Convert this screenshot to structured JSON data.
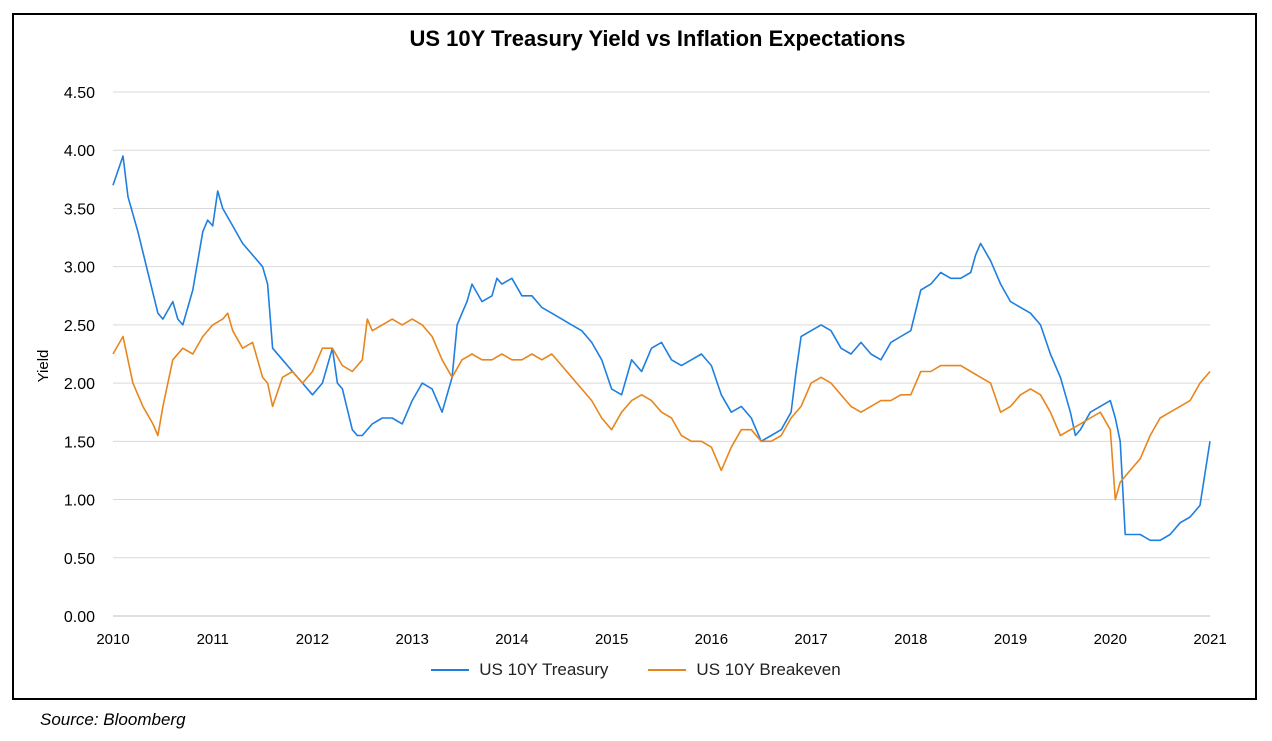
{
  "chart_data": {
    "type": "line",
    "title": "US 10Y Treasury Yield vs Inflation Expectations",
    "ylabel": "Yield",
    "xlabel": "",
    "ylim": [
      0,
      4.5
    ],
    "xlim": [
      2010,
      2021
    ],
    "y_ticks": [
      "0.00",
      "0.50",
      "1.00",
      "1.50",
      "2.00",
      "2.50",
      "3.00",
      "3.50",
      "4.00",
      "4.50"
    ],
    "x_ticks": [
      "2010",
      "2011",
      "2012",
      "2013",
      "2014",
      "2015",
      "2016",
      "2017",
      "2018",
      "2019",
      "2020",
      "2021"
    ],
    "grid": true,
    "legend_position": "bottom",
    "series": [
      {
        "name": "US 10Y Treasury",
        "color": "#1f7fe0",
        "x": [
          2010.0,
          2010.1,
          2010.15,
          2010.25,
          2010.35,
          2010.45,
          2010.5,
          2010.6,
          2010.65,
          2010.7,
          2010.8,
          2010.9,
          2010.95,
          2011.0,
          2011.05,
          2011.1,
          2011.2,
          2011.3,
          2011.4,
          2011.5,
          2011.55,
          2011.6,
          2011.7,
          2011.8,
          2011.9,
          2012.0,
          2012.1,
          2012.2,
          2012.25,
          2012.3,
          2012.4,
          2012.45,
          2012.5,
          2012.6,
          2012.7,
          2012.8,
          2012.9,
          2013.0,
          2013.1,
          2013.2,
          2013.3,
          2013.4,
          2013.45,
          2013.5,
          2013.55,
          2013.6,
          2013.7,
          2013.8,
          2013.85,
          2013.9,
          2014.0,
          2014.1,
          2014.2,
          2014.3,
          2014.4,
          2014.5,
          2014.6,
          2014.7,
          2014.8,
          2014.9,
          2015.0,
          2015.1,
          2015.2,
          2015.3,
          2015.4,
          2015.5,
          2015.6,
          2015.7,
          2015.8,
          2015.9,
          2016.0,
          2016.1,
          2016.2,
          2016.3,
          2016.35,
          2016.4,
          2016.5,
          2016.6,
          2016.7,
          2016.8,
          2016.85,
          2016.9,
          2017.0,
          2017.1,
          2017.2,
          2017.3,
          2017.4,
          2017.5,
          2017.6,
          2017.7,
          2017.8,
          2017.9,
          2018.0,
          2018.1,
          2018.2,
          2018.3,
          2018.4,
          2018.5,
          2018.6,
          2018.65,
          2018.7,
          2018.8,
          2018.9,
          2019.0,
          2019.1,
          2019.2,
          2019.3,
          2019.4,
          2019.5,
          2019.6,
          2019.65,
          2019.7,
          2019.8,
          2019.9,
          2020.0,
          2020.05,
          2020.1,
          2020.15,
          2020.2,
          2020.3,
          2020.4,
          2020.5,
          2020.6,
          2020.7,
          2020.8,
          2020.9,
          2021.0
        ],
        "values": [
          3.7,
          3.95,
          3.6,
          3.3,
          2.95,
          2.6,
          2.55,
          2.7,
          2.55,
          2.5,
          2.8,
          3.3,
          3.4,
          3.35,
          3.65,
          3.5,
          3.35,
          3.2,
          3.1,
          3.0,
          2.85,
          2.3,
          2.2,
          2.1,
          2.0,
          1.9,
          2.0,
          2.3,
          2.0,
          1.95,
          1.6,
          1.55,
          1.55,
          1.65,
          1.7,
          1.7,
          1.65,
          1.85,
          2.0,
          1.95,
          1.75,
          2.05,
          2.5,
          2.6,
          2.7,
          2.85,
          2.7,
          2.75,
          2.9,
          2.85,
          2.9,
          2.75,
          2.75,
          2.65,
          2.6,
          2.55,
          2.5,
          2.45,
          2.35,
          2.2,
          1.95,
          1.9,
          2.2,
          2.1,
          2.3,
          2.35,
          2.2,
          2.15,
          2.2,
          2.25,
          2.15,
          1.9,
          1.75,
          1.8,
          1.75,
          1.7,
          1.5,
          1.55,
          1.6,
          1.75,
          2.1,
          2.4,
          2.45,
          2.5,
          2.45,
          2.3,
          2.25,
          2.35,
          2.25,
          2.2,
          2.35,
          2.4,
          2.45,
          2.8,
          2.85,
          2.95,
          2.9,
          2.9,
          2.95,
          3.1,
          3.2,
          3.05,
          2.85,
          2.7,
          2.65,
          2.6,
          2.5,
          2.25,
          2.05,
          1.75,
          1.55,
          1.6,
          1.75,
          1.8,
          1.85,
          1.7,
          1.5,
          0.7,
          0.7,
          0.7,
          0.65,
          0.65,
          0.7,
          0.8,
          0.85,
          0.95,
          1.5
        ]
      },
      {
        "name": "US 10Y Breakeven",
        "color": "#e8861e",
        "x": [
          2010.0,
          2010.1,
          2010.2,
          2010.3,
          2010.4,
          2010.45,
          2010.5,
          2010.6,
          2010.7,
          2010.8,
          2010.9,
          2011.0,
          2011.1,
          2011.15,
          2011.2,
          2011.3,
          2011.4,
          2011.5,
          2011.55,
          2011.6,
          2011.7,
          2011.8,
          2011.9,
          2012.0,
          2012.1,
          2012.2,
          2012.3,
          2012.4,
          2012.5,
          2012.55,
          2012.6,
          2012.7,
          2012.8,
          2012.9,
          2013.0,
          2013.1,
          2013.2,
          2013.3,
          2013.4,
          2013.5,
          2013.6,
          2013.7,
          2013.8,
          2013.9,
          2014.0,
          2014.1,
          2014.2,
          2014.3,
          2014.4,
          2014.5,
          2014.6,
          2014.7,
          2014.8,
          2014.9,
          2015.0,
          2015.1,
          2015.2,
          2015.3,
          2015.4,
          2015.5,
          2015.6,
          2015.7,
          2015.8,
          2015.9,
          2016.0,
          2016.1,
          2016.2,
          2016.3,
          2016.4,
          2016.5,
          2016.6,
          2016.7,
          2016.8,
          2016.9,
          2017.0,
          2017.1,
          2017.2,
          2017.3,
          2017.4,
          2017.5,
          2017.6,
          2017.7,
          2017.8,
          2017.9,
          2018.0,
          2018.1,
          2018.2,
          2018.3,
          2018.4,
          2018.5,
          2018.6,
          2018.7,
          2018.8,
          2018.9,
          2019.0,
          2019.1,
          2019.2,
          2019.3,
          2019.4,
          2019.5,
          2019.6,
          2019.7,
          2019.8,
          2019.9,
          2020.0,
          2020.05,
          2020.1,
          2020.15,
          2020.2,
          2020.3,
          2020.4,
          2020.5,
          2020.6,
          2020.7,
          2020.8,
          2020.9,
          2021.0
        ],
        "values": [
          2.25,
          2.4,
          2.0,
          1.8,
          1.65,
          1.55,
          1.8,
          2.2,
          2.3,
          2.25,
          2.4,
          2.5,
          2.55,
          2.6,
          2.45,
          2.3,
          2.35,
          2.05,
          2.0,
          1.8,
          2.05,
          2.1,
          2.0,
          2.1,
          2.3,
          2.3,
          2.15,
          2.1,
          2.2,
          2.55,
          2.45,
          2.5,
          2.55,
          2.5,
          2.55,
          2.5,
          2.4,
          2.2,
          2.05,
          2.2,
          2.25,
          2.2,
          2.2,
          2.25,
          2.2,
          2.2,
          2.25,
          2.2,
          2.25,
          2.15,
          2.05,
          1.95,
          1.85,
          1.7,
          1.6,
          1.75,
          1.85,
          1.9,
          1.85,
          1.75,
          1.7,
          1.55,
          1.5,
          1.5,
          1.45,
          1.25,
          1.45,
          1.6,
          1.6,
          1.5,
          1.5,
          1.55,
          1.7,
          1.8,
          2.0,
          2.05,
          2.0,
          1.9,
          1.8,
          1.75,
          1.8,
          1.85,
          1.85,
          1.9,
          1.9,
          2.1,
          2.1,
          2.15,
          2.15,
          2.15,
          2.1,
          2.05,
          2.0,
          1.75,
          1.8,
          1.9,
          1.95,
          1.9,
          1.75,
          1.55,
          1.6,
          1.65,
          1.7,
          1.75,
          1.6,
          1.0,
          1.15,
          1.2,
          1.25,
          1.35,
          1.55,
          1.7,
          1.75,
          1.8,
          1.85,
          2.0,
          2.1
        ]
      }
    ]
  },
  "footer": {
    "source": "Source: Bloomberg"
  }
}
